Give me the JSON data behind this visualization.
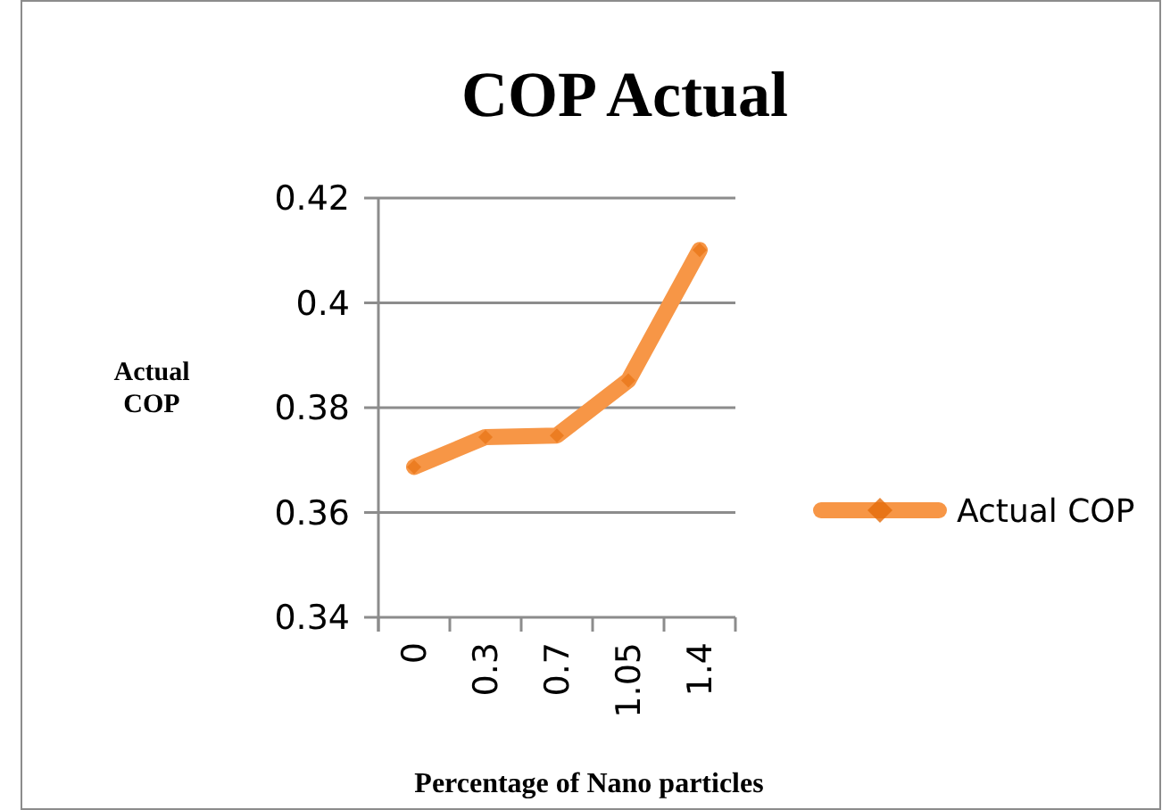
{
  "chart_data": {
    "type": "line",
    "title": "COP Actual",
    "xlabel": "Percentage of Nano particles",
    "ylabel": "Actual COP",
    "categories": [
      "0",
      "0.3",
      "0.7",
      "1.05",
      "1.4"
    ],
    "series": [
      {
        "name": "Actual COP",
        "color": "#f79646",
        "values": [
          0.3687,
          0.3744,
          0.3747,
          0.3852,
          0.4101
        ]
      }
    ],
    "ylim": [
      0.34,
      0.42
    ],
    "yticks": [
      0.34,
      0.36,
      0.38,
      0.4,
      0.42
    ],
    "grid": "y",
    "legend": "right",
    "marker": "diamond",
    "line_style": "solid"
  }
}
